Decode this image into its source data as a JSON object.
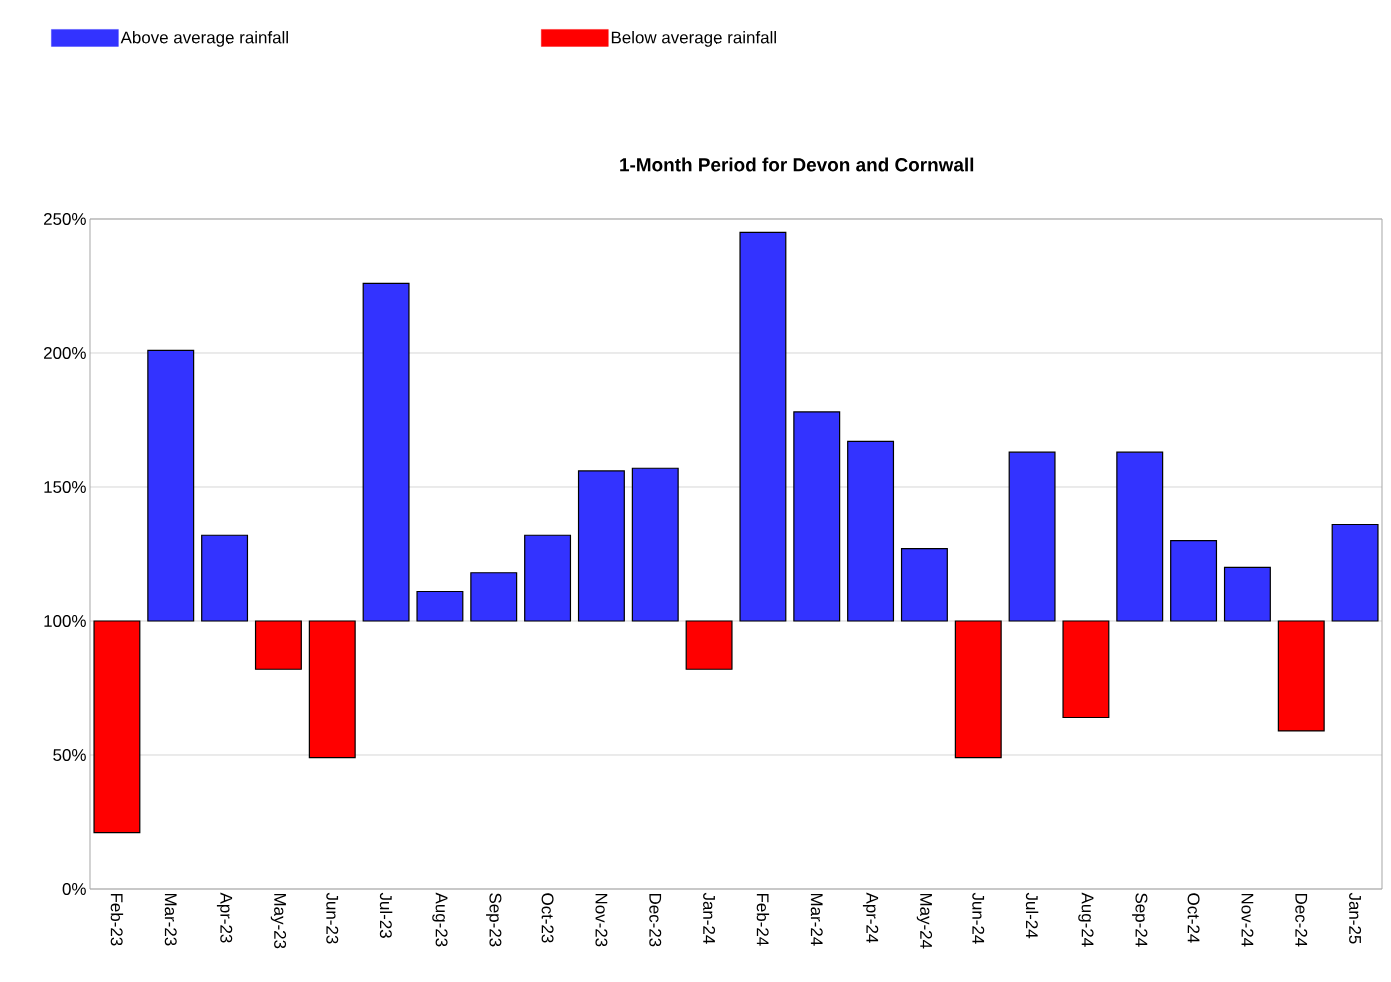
{
  "chart_data": {
    "type": "bar",
    "title": "1-Month Period for Devon and Cornwall",
    "categories": [
      "Feb-23",
      "Mar-23",
      "Apr-23",
      "May-23",
      "Jun-23",
      "Jul-23",
      "Aug-23",
      "Sep-23",
      "Oct-23",
      "Nov-23",
      "Dec-23",
      "Jan-24",
      "Feb-24",
      "Mar-24",
      "Apr-24",
      "May-24",
      "Jun-24",
      "Jul-24",
      "Aug-24",
      "Sep-24",
      "Oct-24",
      "Nov-24",
      "Dec-24",
      "Jan-25"
    ],
    "series": [
      {
        "name": "Above average rainfall",
        "color": "#3333ff",
        "base": [
          null,
          100,
          100,
          null,
          null,
          100,
          100,
          100,
          100,
          100,
          100,
          null,
          100,
          100,
          100,
          100,
          null,
          100,
          null,
          100,
          100,
          100,
          null,
          100
        ],
        "values": [
          null,
          101,
          32,
          null,
          null,
          126,
          11,
          18,
          32,
          56,
          57,
          null,
          145,
          78,
          67,
          27,
          null,
          63,
          null,
          63,
          30,
          20,
          null,
          36
        ]
      },
      {
        "name": "Below average rainfall",
        "color": "#ff0000",
        "base": [
          100,
          null,
          null,
          100,
          100,
          null,
          null,
          null,
          null,
          null,
          null,
          100,
          null,
          null,
          null,
          null,
          100,
          null,
          100,
          null,
          null,
          null,
          100,
          null
        ],
        "values": [
          -79,
          null,
          null,
          -18,
          -51,
          null,
          null,
          null,
          null,
          null,
          null,
          -18,
          null,
          null,
          null,
          null,
          -51,
          null,
          -36,
          null,
          null,
          null,
          -41,
          null
        ]
      }
    ],
    "ylim": [
      0,
      250
    ],
    "yticks": [
      {
        "value": 0,
        "label": "0%"
      },
      {
        "value": 50,
        "label": "50%"
      },
      {
        "value": 100,
        "label": "100%"
      },
      {
        "value": 150,
        "label": "150%"
      },
      {
        "value": 200,
        "label": "200%"
      },
      {
        "value": 250,
        "label": "250%"
      }
    ],
    "grid": "y",
    "legend": "top"
  }
}
